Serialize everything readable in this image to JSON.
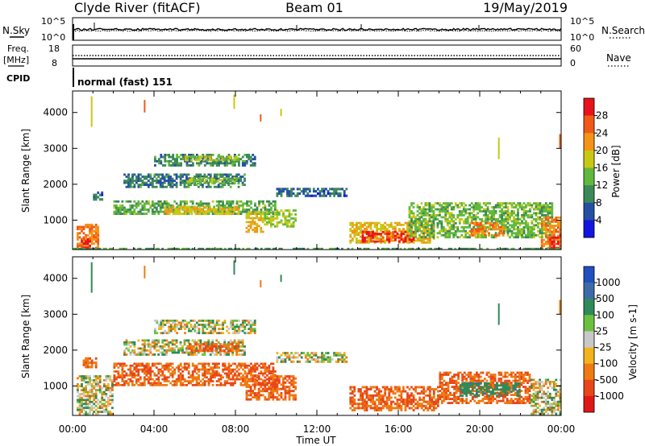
{
  "header": {
    "station": "Clyde River (fitACF)",
    "beam": "Beam 01",
    "date": "19/May/2019"
  },
  "noise_panel": {
    "left_label": "N.Sky",
    "right_label": "N.Search",
    "tick_top_left": "10^5",
    "tick_bottom_left": "10^0",
    "tick_top_right": "10^5",
    "tick_bottom_right": "10^0",
    "line_color": "#000000"
  },
  "freq_panel": {
    "left_label_1": "Freq.",
    "left_label_2": "[MHz]",
    "right_label": "Nave",
    "tick_left_top": "18",
    "tick_left_bottom": "8",
    "tick_right_top": "60",
    "tick_right_bottom": "0"
  },
  "cpid": {
    "label": "CPID",
    "value": "normal (fast) 151"
  },
  "time_axis": {
    "label": "Time UT",
    "ticks": [
      "00:00",
      "04:00",
      "08:00",
      "12:00",
      "16:00",
      "20:00",
      "00:00"
    ]
  },
  "power_colorbar": {
    "title": "Power [dB]",
    "labels": [
      "28",
      "24",
      "20",
      "16",
      "12",
      "8",
      "4"
    ],
    "colors": [
      "#e8121c",
      "#f05a16",
      "#f59318",
      "#c8c814",
      "#62b83c",
      "#3c8858",
      "#244fa4",
      "#1414e0"
    ]
  },
  "velocity_colorbar": {
    "title": "Velocity [m s-1]",
    "labels": [
      "1000",
      "500",
      "100",
      "25",
      "-25",
      "-100",
      "-500",
      "-1000"
    ],
    "colors": [
      "#2050c0",
      "#3f6aa8",
      "#2e8a58",
      "#6cc040",
      "#c8c8c8",
      "#f2b41c",
      "#ef7a12",
      "#e8461a",
      "#e01818"
    ]
  },
  "chart_data": [
    {
      "type": "heatmap",
      "panel": "power",
      "ylabel": "Slant Range [km]",
      "xlabel": "Time UT",
      "xlim_hours": [
        0,
        24
      ],
      "ylim_km": [
        180,
        4600
      ],
      "yticks": [
        1000,
        2000,
        3000,
        4000
      ],
      "ytick_labels": [
        "1000",
        "2000",
        "3000",
        "4000"
      ],
      "echo_regions": [
        {
          "t0": 0.2,
          "t1": 1.3,
          "r0": 200,
          "r1": 900,
          "value": 22
        },
        {
          "t0": 0.4,
          "t1": 0.9,
          "r0": 200,
          "r1": 500,
          "value": 28
        },
        {
          "t0": 1.0,
          "t1": 1.5,
          "r0": 1550,
          "r1": 1800,
          "value": 6
        },
        {
          "t0": 2.0,
          "t1": 10.0,
          "r0": 1150,
          "r1": 1550,
          "value": 11
        },
        {
          "t0": 4.5,
          "t1": 8.2,
          "r0": 1150,
          "r1": 1400,
          "value": 17
        },
        {
          "t0": 2.5,
          "t1": 8.5,
          "r0": 1900,
          "r1": 2300,
          "value": 7
        },
        {
          "t0": 5.6,
          "t1": 8.2,
          "r0": 2000,
          "r1": 2200,
          "value": 13
        },
        {
          "t0": 4.0,
          "t1": 9.0,
          "r0": 2500,
          "r1": 2850,
          "value": 8
        },
        {
          "t0": 5.5,
          "t1": 8.2,
          "r0": 2650,
          "r1": 2800,
          "value": 15
        },
        {
          "t0": 8.5,
          "t1": 9.4,
          "r0": 650,
          "r1": 1250,
          "value": 18
        },
        {
          "t0": 9.4,
          "t1": 11.0,
          "r0": 800,
          "r1": 1300,
          "value": 14
        },
        {
          "t0": 10.0,
          "t1": 13.5,
          "r0": 1650,
          "r1": 1900,
          "value": 6
        },
        {
          "t0": 13.6,
          "t1": 17.8,
          "r0": 350,
          "r1": 950,
          "value": 18
        },
        {
          "t0": 14.2,
          "t1": 16.8,
          "r0": 380,
          "r1": 700,
          "value": 27
        },
        {
          "t0": 16.5,
          "t1": 23.6,
          "r0": 500,
          "r1": 1500,
          "value": 12
        },
        {
          "t0": 19.5,
          "t1": 21.2,
          "r0": 550,
          "r1": 950,
          "value": 22
        },
        {
          "t0": 23.0,
          "t1": 24.0,
          "r0": 200,
          "r1": 1100,
          "value": 21
        },
        {
          "t0": 23.4,
          "t1": 24.0,
          "r0": 200,
          "r1": 600,
          "value": 27
        },
        {
          "t0": 0.0,
          "t1": 24.0,
          "r0": 180,
          "r1": 230,
          "value": 9
        }
      ]
    },
    {
      "type": "heatmap",
      "panel": "velocity",
      "ylabel": "Slant Range [km]",
      "xlabel": "Time UT",
      "xlim_hours": [
        0,
        24
      ],
      "ylim_km": [
        180,
        4600
      ],
      "yticks": [
        1000,
        2000,
        3000,
        4000
      ],
      "ytick_labels": [
        "1000",
        "2000",
        "3000",
        "4000"
      ],
      "echo_regions": [
        {
          "t0": 0.2,
          "t1": 2.0,
          "r0": 200,
          "r1": 1300,
          "value": 0
        },
        {
          "t0": 0.5,
          "t1": 1.2,
          "r0": 1500,
          "r1": 1800,
          "value": -300
        },
        {
          "t0": 2.0,
          "t1": 10.0,
          "r0": 1000,
          "r1": 1650,
          "value": -300
        },
        {
          "t0": 2.5,
          "t1": 8.5,
          "r0": 1850,
          "r1": 2300,
          "value": 0
        },
        {
          "t0": 5.6,
          "t1": 8.2,
          "r0": 1950,
          "r1": 2200,
          "value": -300
        },
        {
          "t0": 4.0,
          "t1": 9.0,
          "r0": 2450,
          "r1": 2850,
          "value": 0
        },
        {
          "t0": 8.5,
          "t1": 11.0,
          "r0": 600,
          "r1": 1300,
          "value": -300
        },
        {
          "t0": 10.0,
          "t1": 13.5,
          "r0": 1650,
          "r1": 1950,
          "value": 0
        },
        {
          "t0": 13.6,
          "t1": 18.0,
          "r0": 300,
          "r1": 1000,
          "value": -300
        },
        {
          "t0": 18.0,
          "t1": 22.5,
          "r0": 500,
          "r1": 1400,
          "value": -300
        },
        {
          "t0": 19.0,
          "t1": 22.0,
          "r0": 700,
          "r1": 1100,
          "value": 200
        },
        {
          "t0": 22.5,
          "t1": 24.0,
          "r0": 200,
          "r1": 1200,
          "value": 0
        }
      ]
    }
  ]
}
